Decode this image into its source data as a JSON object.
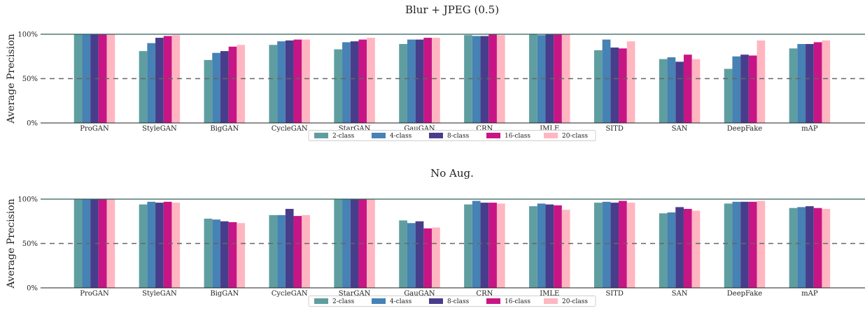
{
  "chart_data": [
    {
      "type": "bar",
      "title": "Blur + JPEG (0.5)",
      "xlabel": "",
      "ylabel": "Average Precision",
      "ylim": [
        0,
        100
      ],
      "yticks": [
        "0%",
        "50%",
        "100%"
      ],
      "reference_lines": [
        100,
        50
      ],
      "legend_position": "bottom-center",
      "categories": [
        "ProGAN",
        "StyleGAN",
        "BigGAN",
        "CycleGAN",
        "StarGAN",
        "GauGAN",
        "CRN",
        "IMLE",
        "SITD",
        "SAN",
        "DeepFake",
        "mAP"
      ],
      "series": [
        {
          "name": "2-class",
          "color": "#5f9ea0",
          "values": [
            100,
            81,
            71,
            88,
            83,
            89,
            99,
            100,
            82,
            72,
            61,
            84
          ]
        },
        {
          "name": "4-class",
          "color": "#4682b4",
          "values": [
            100,
            90,
            79,
            92,
            91,
            94,
            98,
            99,
            94,
            74,
            75,
            89
          ]
        },
        {
          "name": "8-class",
          "color": "#483d8b",
          "values": [
            100,
            96,
            81,
            93,
            92,
            94,
            98,
            100,
            85,
            69,
            77,
            89
          ]
        },
        {
          "name": "16-class",
          "color": "#c71585",
          "values": [
            100,
            98,
            86,
            94,
            94,
            96,
            100,
            100,
            84,
            77,
            76,
            91
          ]
        },
        {
          "name": "20-class",
          "color": "#ffb6c1",
          "values": [
            100,
            99,
            88,
            94,
            96,
            96,
            99,
            100,
            92,
            72,
            93,
            93
          ]
        }
      ]
    },
    {
      "type": "bar",
      "title": "No Aug.",
      "xlabel": "",
      "ylabel": "Average Precision",
      "ylim": [
        0,
        100
      ],
      "yticks": [
        "0%",
        "50%",
        "100%"
      ],
      "reference_lines": [
        100,
        50
      ],
      "legend_position": "bottom-center",
      "categories": [
        "ProGAN",
        "StyleGAN",
        "BigGAN",
        "CycleGAN",
        "StarGAN",
        "GauGAN",
        "CRN",
        "IMLE",
        "SITD",
        "SAN",
        "DeepFake",
        "mAP"
      ],
      "series": [
        {
          "name": "2-class",
          "color": "#5f9ea0",
          "values": [
            100,
            94,
            78,
            82,
            100,
            76,
            94,
            92,
            96,
            84,
            95,
            90
          ]
        },
        {
          "name": "4-class",
          "color": "#4682b4",
          "values": [
            100,
            97,
            77,
            82,
            100,
            73,
            98,
            95,
            97,
            85,
            97,
            91
          ]
        },
        {
          "name": "8-class",
          "color": "#483d8b",
          "values": [
            100,
            96,
            75,
            89,
            100,
            75,
            96,
            94,
            96,
            91,
            97,
            92
          ]
        },
        {
          "name": "16-class",
          "color": "#c71585",
          "values": [
            100,
            97,
            74,
            81,
            100,
            67,
            96,
            93,
            98,
            89,
            97,
            90
          ]
        },
        {
          "name": "20-class",
          "color": "#ffb6c1",
          "values": [
            100,
            96,
            73,
            82,
            100,
            68,
            95,
            88,
            96,
            87,
            98,
            89
          ]
        }
      ]
    }
  ]
}
